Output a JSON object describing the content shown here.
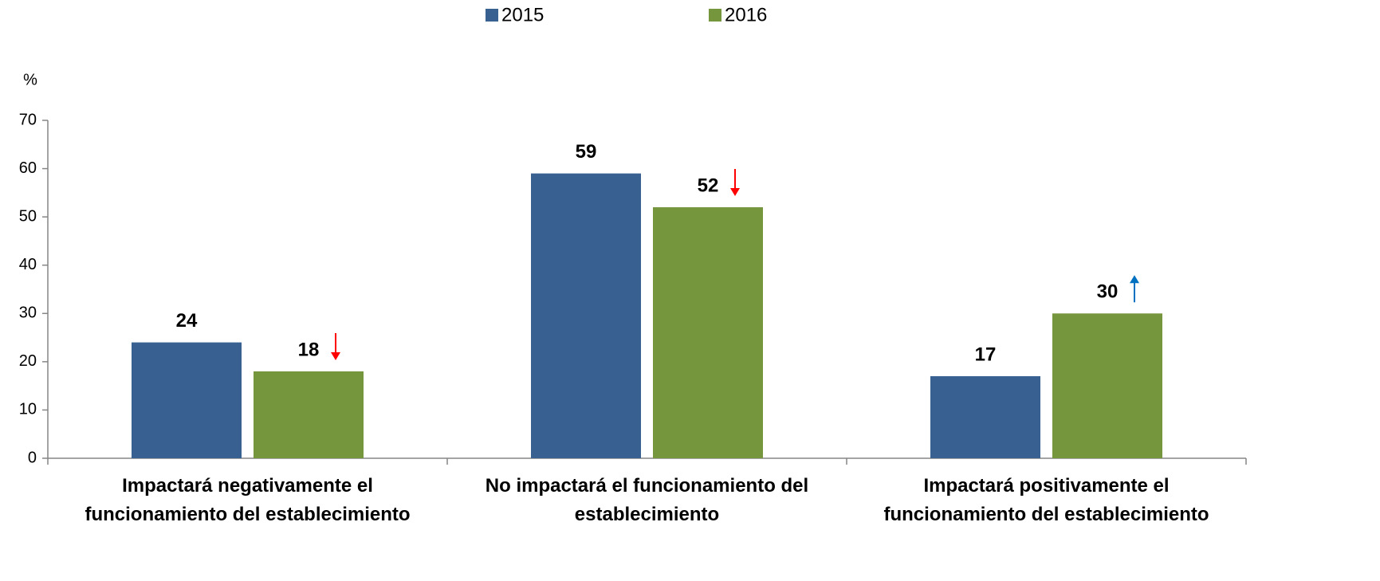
{
  "chart_data": {
    "type": "bar",
    "y_label": "%",
    "categories": [
      "Impactará negativamente el funcionamiento del establecimiento",
      "No impactará el funcionamiento del establecimiento",
      "Impactará positivamente el funcionamiento del establecimiento"
    ],
    "series": [
      {
        "name": "2015",
        "color": "#386090",
        "values": [
          24,
          59,
          17
        ]
      },
      {
        "name": "2016",
        "color": "#76963e",
        "values": [
          18,
          52,
          30
        ]
      }
    ],
    "ylim": [
      0,
      70
    ],
    "yticks": [
      0,
      10,
      20,
      30,
      40,
      50,
      60,
      70
    ],
    "grid": false,
    "legend": "top"
  }
}
